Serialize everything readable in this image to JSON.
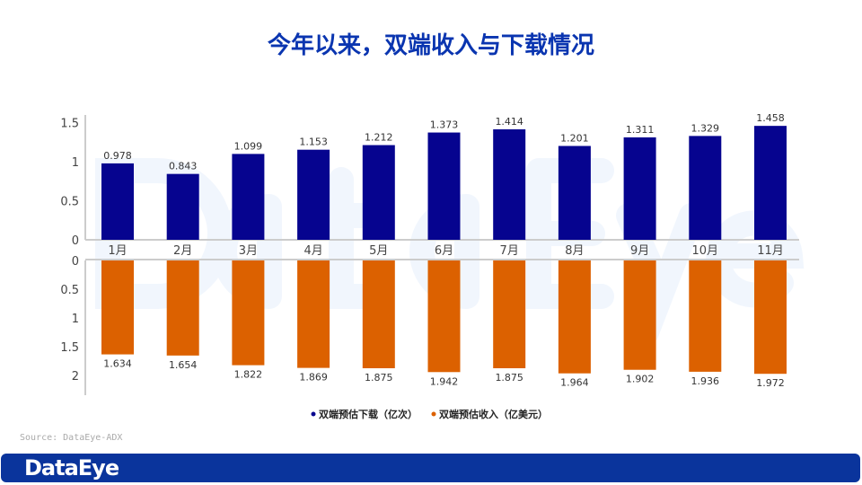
{
  "title": "今年以来，双端收入与下载情况",
  "source": "Source: DataEye-ADX",
  "footer_logo": "DataEye",
  "watermark": "DataEye",
  "colors": {
    "downloads": "#06048f",
    "revenue": "#dc6100",
    "title": "#0a35b0",
    "footer": "#0a349c"
  },
  "chart_data": {
    "type": "bar",
    "title": "今年以来，双端收入与下载情况",
    "categories": [
      "1月",
      "2月",
      "3月",
      "4月",
      "5月",
      "6月",
      "7月",
      "8月",
      "9月",
      "10月",
      "11月"
    ],
    "series": [
      {
        "name": "双端预估下载（亿次）",
        "values": [
          0.978,
          0.843,
          1.099,
          1.153,
          1.212,
          1.373,
          1.414,
          1.201,
          1.311,
          1.329,
          1.458
        ],
        "labels": [
          "0.978",
          "0.843",
          "1.099",
          "1.153",
          "1.212",
          "1.373",
          "1.414",
          "1.201",
          "1.311",
          "1.329",
          "1.458"
        ],
        "direction": "up",
        "ylim": [
          0,
          1.5
        ],
        "yticks": [
          "0",
          "0.5",
          "1",
          "1.5"
        ]
      },
      {
        "name": "双端预估收入（亿美元）",
        "values": [
          1.634,
          1.654,
          1.822,
          1.869,
          1.875,
          1.942,
          1.875,
          1.964,
          1.902,
          1.936,
          1.972
        ],
        "labels": [
          "1.634",
          "1.654",
          "1.822",
          "1.869",
          "1.875",
          "1.942",
          "1.875",
          "1.964",
          "1.902",
          "1.936",
          "1.972"
        ],
        "direction": "down",
        "ylim": [
          0,
          2
        ],
        "yticks": [
          "0",
          "0.5",
          "1",
          "1.5",
          "2"
        ]
      }
    ],
    "legend": "bottom-center",
    "grid": false
  }
}
